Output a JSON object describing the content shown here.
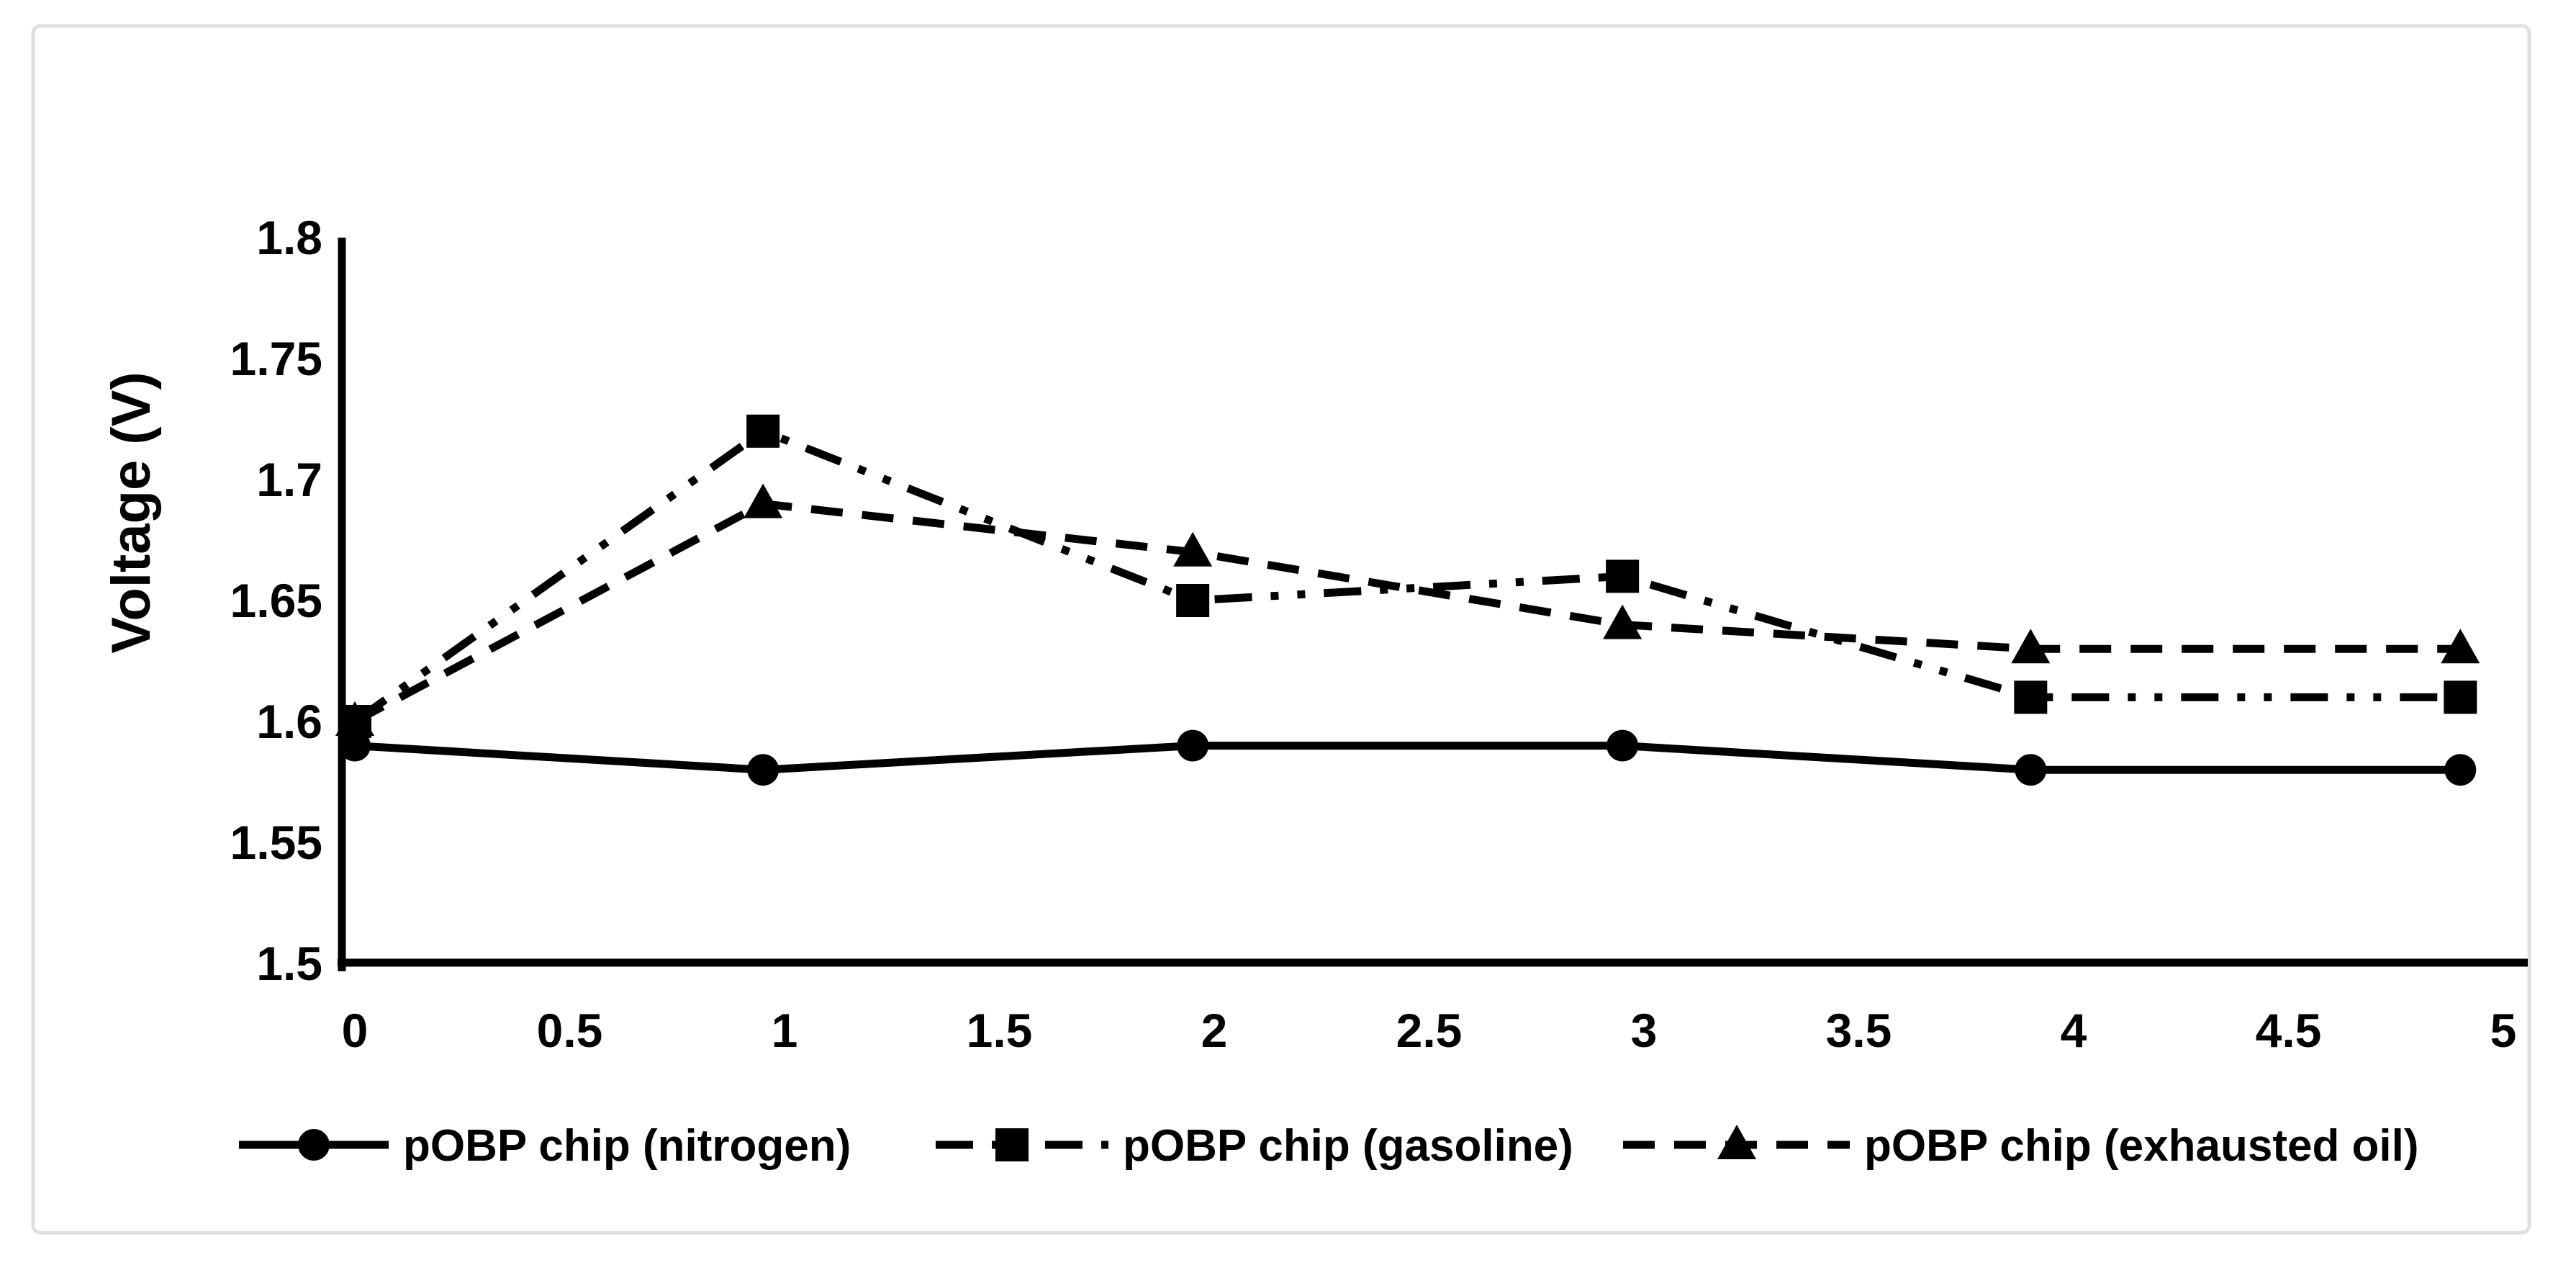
{
  "figure": {
    "background": "#ffffff",
    "border_color": "#e0e0e0",
    "line_color": "#000000"
  },
  "chart_data": {
    "type": "line",
    "title": "",
    "xlabel": "",
    "ylabel": "Voltage (V)",
    "xlim": [
      0,
      5.05
    ],
    "ylim": [
      1.5,
      1.8
    ],
    "grid": false,
    "legend_position": "bottom",
    "x_ticks": [
      "0",
      "0.5",
      "1",
      "1.5",
      "2",
      "2.5",
      "3",
      "3.5",
      "4",
      "4.5",
      "5"
    ],
    "y_ticks": [
      "1.5",
      "1.55",
      "1.6",
      "1.65",
      "1.7",
      "1.75",
      "1.8"
    ],
    "x": [
      0,
      0.95,
      1.95,
      2.95,
      3.9,
      4.9
    ],
    "series": [
      {
        "name": "pOBP chip (nitrogen)",
        "marker": "circle",
        "line_style": "solid",
        "color": "#000000",
        "values": [
          1.59,
          1.58,
          1.59,
          1.59,
          1.58,
          1.58
        ]
      },
      {
        "name": "pOBP chip (gasoline)",
        "marker": "square",
        "line_style": "dash-dot-dot",
        "color": "#000000",
        "values": [
          1.6,
          1.72,
          1.65,
          1.66,
          1.61,
          1.61
        ]
      },
      {
        "name": "pOBP chip (exhausted oil)",
        "marker": "triangle",
        "line_style": "dashed",
        "color": "#000000",
        "values": [
          1.6,
          1.69,
          1.67,
          1.64,
          1.63,
          1.63
        ]
      }
    ]
  }
}
